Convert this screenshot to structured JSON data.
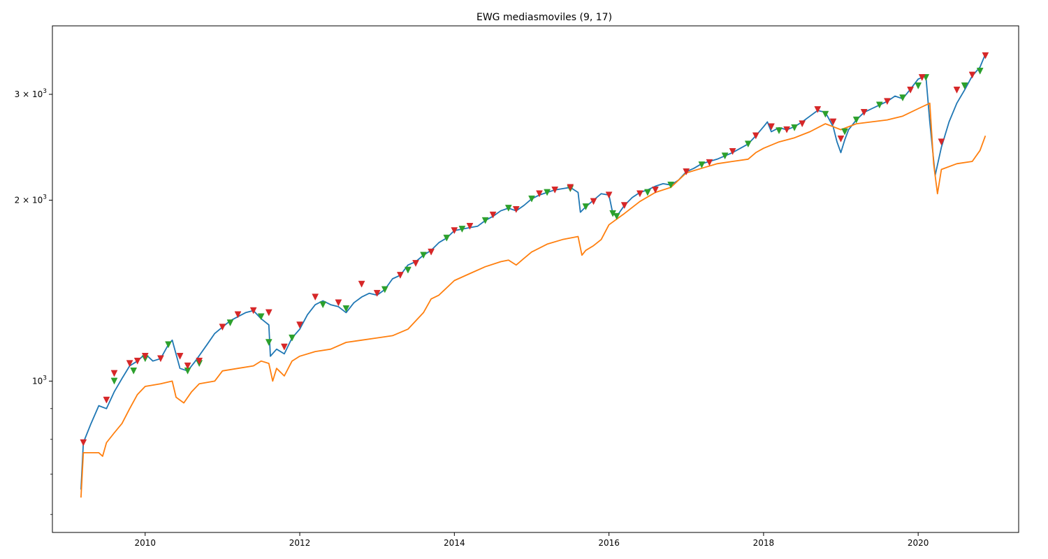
{
  "chart_data": {
    "type": "line",
    "title": "EWG mediasmoviles (9, 17)",
    "xlabel": "",
    "ylabel": "",
    "y_scale": "log",
    "xlim": [
      2008.8,
      2021.3
    ],
    "ylim": [
      560,
      3900
    ],
    "grid": false,
    "legend": "none",
    "x_ticks": [
      2010,
      2012,
      2014,
      2016,
      2018,
      2020
    ],
    "x_tick_labels": [
      "2010",
      "2012",
      "2014",
      "2016",
      "2018",
      "2020"
    ],
    "y_ticks": [
      1000,
      2000,
      3000
    ],
    "y_tick_labels": [
      {
        "base": "10",
        "exp": "3"
      },
      {
        "base": "2 × 10",
        "exp": "3"
      },
      {
        "base": "3 × 10",
        "exp": "3"
      }
    ],
    "series": [
      {
        "color": "#1f77b4",
        "points": [
          [
            2009.17,
            660
          ],
          [
            2009.2,
            790
          ],
          [
            2009.3,
            850
          ],
          [
            2009.4,
            910
          ],
          [
            2009.5,
            900
          ],
          [
            2009.6,
            960
          ],
          [
            2009.7,
            1010
          ],
          [
            2009.8,
            1060
          ],
          [
            2009.9,
            1080
          ],
          [
            2010.0,
            1110
          ],
          [
            2010.1,
            1080
          ],
          [
            2010.2,
            1090
          ],
          [
            2010.3,
            1150
          ],
          [
            2010.35,
            1170
          ],
          [
            2010.45,
            1050
          ],
          [
            2010.55,
            1040
          ],
          [
            2010.65,
            1080
          ],
          [
            2010.8,
            1150
          ],
          [
            2010.9,
            1200
          ],
          [
            2011.0,
            1230
          ],
          [
            2011.1,
            1260
          ],
          [
            2011.2,
            1280
          ],
          [
            2011.3,
            1300
          ],
          [
            2011.4,
            1310
          ],
          [
            2011.5,
            1270
          ],
          [
            2011.6,
            1240
          ],
          [
            2011.62,
            1100
          ],
          [
            2011.7,
            1130
          ],
          [
            2011.8,
            1110
          ],
          [
            2011.9,
            1180
          ],
          [
            2012.0,
            1220
          ],
          [
            2012.1,
            1290
          ],
          [
            2012.2,
            1340
          ],
          [
            2012.3,
            1360
          ],
          [
            2012.4,
            1340
          ],
          [
            2012.5,
            1330
          ],
          [
            2012.6,
            1300
          ],
          [
            2012.7,
            1350
          ],
          [
            2012.8,
            1380
          ],
          [
            2012.9,
            1400
          ],
          [
            2013.0,
            1390
          ],
          [
            2013.1,
            1420
          ],
          [
            2013.2,
            1480
          ],
          [
            2013.3,
            1500
          ],
          [
            2013.4,
            1560
          ],
          [
            2013.5,
            1580
          ],
          [
            2013.6,
            1620
          ],
          [
            2013.7,
            1650
          ],
          [
            2013.8,
            1700
          ],
          [
            2013.9,
            1730
          ],
          [
            2014.0,
            1780
          ],
          [
            2014.1,
            1790
          ],
          [
            2014.2,
            1800
          ],
          [
            2014.3,
            1810
          ],
          [
            2014.4,
            1850
          ],
          [
            2014.5,
            1880
          ],
          [
            2014.6,
            1920
          ],
          [
            2014.7,
            1940
          ],
          [
            2014.8,
            1920
          ],
          [
            2014.9,
            1960
          ],
          [
            2015.0,
            2010
          ],
          [
            2015.1,
            2040
          ],
          [
            2015.2,
            2060
          ],
          [
            2015.3,
            2080
          ],
          [
            2015.4,
            2090
          ],
          [
            2015.5,
            2100
          ],
          [
            2015.6,
            2060
          ],
          [
            2015.63,
            1910
          ],
          [
            2015.7,
            1950
          ],
          [
            2015.8,
            2000
          ],
          [
            2015.9,
            2050
          ],
          [
            2016.0,
            2040
          ],
          [
            2016.05,
            1900
          ],
          [
            2016.1,
            1880
          ],
          [
            2016.2,
            1960
          ],
          [
            2016.3,
            2020
          ],
          [
            2016.4,
            2060
          ],
          [
            2016.5,
            2080
          ],
          [
            2016.6,
            2110
          ],
          [
            2016.7,
            2130
          ],
          [
            2016.8,
            2120
          ],
          [
            2016.9,
            2160
          ],
          [
            2017.0,
            2230
          ],
          [
            2017.1,
            2260
          ],
          [
            2017.2,
            2300
          ],
          [
            2017.3,
            2320
          ],
          [
            2017.4,
            2340
          ],
          [
            2017.5,
            2370
          ],
          [
            2017.6,
            2400
          ],
          [
            2017.7,
            2440
          ],
          [
            2017.8,
            2480
          ],
          [
            2017.9,
            2560
          ],
          [
            2018.0,
            2650
          ],
          [
            2018.05,
            2700
          ],
          [
            2018.1,
            2600
          ],
          [
            2018.2,
            2640
          ],
          [
            2018.3,
            2620
          ],
          [
            2018.4,
            2650
          ],
          [
            2018.5,
            2700
          ],
          [
            2018.6,
            2760
          ],
          [
            2018.7,
            2820
          ],
          [
            2018.8,
            2800
          ],
          [
            2018.9,
            2650
          ],
          [
            2018.95,
            2500
          ],
          [
            2019.0,
            2400
          ],
          [
            2019.05,
            2520
          ],
          [
            2019.1,
            2620
          ],
          [
            2019.2,
            2720
          ],
          [
            2019.3,
            2800
          ],
          [
            2019.4,
            2840
          ],
          [
            2019.5,
            2880
          ],
          [
            2019.6,
            2920
          ],
          [
            2019.7,
            2980
          ],
          [
            2019.8,
            2950
          ],
          [
            2019.9,
            3060
          ],
          [
            2020.0,
            3180
          ],
          [
            2020.1,
            3220
          ],
          [
            2020.15,
            2700
          ],
          [
            2020.22,
            2200
          ],
          [
            2020.3,
            2450
          ],
          [
            2020.4,
            2700
          ],
          [
            2020.5,
            2900
          ],
          [
            2020.6,
            3050
          ],
          [
            2020.7,
            3220
          ],
          [
            2020.8,
            3330
          ],
          [
            2020.87,
            3500
          ]
        ]
      },
      {
        "color": "#ff7f0e",
        "points": [
          [
            2009.17,
            640
          ],
          [
            2009.2,
            760
          ],
          [
            2009.4,
            760
          ],
          [
            2009.45,
            750
          ],
          [
            2009.5,
            790
          ],
          [
            2009.6,
            820
          ],
          [
            2009.7,
            850
          ],
          [
            2009.8,
            900
          ],
          [
            2009.9,
            950
          ],
          [
            2010.0,
            980
          ],
          [
            2010.2,
            990
          ],
          [
            2010.35,
            1000
          ],
          [
            2010.4,
            940
          ],
          [
            2010.5,
            920
          ],
          [
            2010.6,
            960
          ],
          [
            2010.7,
            990
          ],
          [
            2010.9,
            1000
          ],
          [
            2011.0,
            1040
          ],
          [
            2011.2,
            1050
          ],
          [
            2011.4,
            1060
          ],
          [
            2011.5,
            1080
          ],
          [
            2011.6,
            1070
          ],
          [
            2011.65,
            1000
          ],
          [
            2011.7,
            1050
          ],
          [
            2011.8,
            1020
          ],
          [
            2011.9,
            1080
          ],
          [
            2012.0,
            1100
          ],
          [
            2012.2,
            1120
          ],
          [
            2012.4,
            1130
          ],
          [
            2012.6,
            1160
          ],
          [
            2012.8,
            1170
          ],
          [
            2013.0,
            1180
          ],
          [
            2013.2,
            1190
          ],
          [
            2013.4,
            1220
          ],
          [
            2013.6,
            1300
          ],
          [
            2013.7,
            1370
          ],
          [
            2013.8,
            1390
          ],
          [
            2014.0,
            1470
          ],
          [
            2014.2,
            1510
          ],
          [
            2014.4,
            1550
          ],
          [
            2014.6,
            1580
          ],
          [
            2014.7,
            1590
          ],
          [
            2014.8,
            1560
          ],
          [
            2014.9,
            1600
          ],
          [
            2015.0,
            1640
          ],
          [
            2015.2,
            1690
          ],
          [
            2015.4,
            1720
          ],
          [
            2015.6,
            1740
          ],
          [
            2015.65,
            1620
          ],
          [
            2015.7,
            1650
          ],
          [
            2015.8,
            1680
          ],
          [
            2015.9,
            1720
          ],
          [
            2016.0,
            1820
          ],
          [
            2016.2,
            1900
          ],
          [
            2016.4,
            1990
          ],
          [
            2016.6,
            2060
          ],
          [
            2016.8,
            2100
          ],
          [
            2017.0,
            2220
          ],
          [
            2017.2,
            2260
          ],
          [
            2017.4,
            2300
          ],
          [
            2017.6,
            2320
          ],
          [
            2017.8,
            2340
          ],
          [
            2017.9,
            2400
          ],
          [
            2018.0,
            2440
          ],
          [
            2018.2,
            2500
          ],
          [
            2018.4,
            2540
          ],
          [
            2018.6,
            2600
          ],
          [
            2018.8,
            2680
          ],
          [
            2018.9,
            2650
          ],
          [
            2019.0,
            2620
          ],
          [
            2019.2,
            2680
          ],
          [
            2019.4,
            2700
          ],
          [
            2019.6,
            2720
          ],
          [
            2019.8,
            2760
          ],
          [
            2020.0,
            2840
          ],
          [
            2020.15,
            2900
          ],
          [
            2020.2,
            2300
          ],
          [
            2020.25,
            2050
          ],
          [
            2020.3,
            2250
          ],
          [
            2020.5,
            2300
          ],
          [
            2020.7,
            2320
          ],
          [
            2020.8,
            2420
          ],
          [
            2020.87,
            2560
          ]
        ]
      }
    ],
    "markers": {
      "sell": {
        "color": "#d62728",
        "shape": "triangle-down",
        "points": [
          [
            2009.2,
            790
          ],
          [
            2009.5,
            930
          ],
          [
            2009.6,
            1030
          ],
          [
            2009.8,
            1070
          ],
          [
            2009.9,
            1080
          ],
          [
            2010.0,
            1100
          ],
          [
            2010.2,
            1090
          ],
          [
            2010.45,
            1100
          ],
          [
            2010.55,
            1060
          ],
          [
            2010.7,
            1080
          ],
          [
            2011.0,
            1230
          ],
          [
            2011.2,
            1290
          ],
          [
            2011.4,
            1310
          ],
          [
            2011.6,
            1300
          ],
          [
            2011.8,
            1140
          ],
          [
            2012.0,
            1240
          ],
          [
            2012.2,
            1380
          ],
          [
            2012.5,
            1350
          ],
          [
            2012.8,
            1450
          ],
          [
            2013.0,
            1400
          ],
          [
            2013.3,
            1500
          ],
          [
            2013.5,
            1570
          ],
          [
            2013.7,
            1640
          ],
          [
            2014.0,
            1780
          ],
          [
            2014.2,
            1810
          ],
          [
            2014.5,
            1890
          ],
          [
            2014.8,
            1930
          ],
          [
            2015.1,
            2050
          ],
          [
            2015.3,
            2080
          ],
          [
            2015.5,
            2100
          ],
          [
            2015.8,
            1990
          ],
          [
            2016.0,
            2040
          ],
          [
            2016.2,
            1960
          ],
          [
            2016.4,
            2050
          ],
          [
            2016.6,
            2080
          ],
          [
            2017.0,
            2230
          ],
          [
            2017.3,
            2310
          ],
          [
            2017.6,
            2410
          ],
          [
            2017.9,
            2560
          ],
          [
            2018.1,
            2650
          ],
          [
            2018.3,
            2620
          ],
          [
            2018.5,
            2680
          ],
          [
            2018.7,
            2830
          ],
          [
            2018.9,
            2700
          ],
          [
            2019.0,
            2530
          ],
          [
            2019.3,
            2800
          ],
          [
            2019.6,
            2920
          ],
          [
            2019.9,
            3050
          ],
          [
            2020.05,
            3200
          ],
          [
            2020.3,
            2500
          ],
          [
            2020.5,
            3050
          ],
          [
            2020.7,
            3230
          ],
          [
            2020.87,
            3480
          ]
        ]
      },
      "buy": {
        "color": "#2ca02c",
        "shape": "triangle-down",
        "points": [
          [
            2009.6,
            1000
          ],
          [
            2009.85,
            1040
          ],
          [
            2010.0,
            1090
          ],
          [
            2010.3,
            1150
          ],
          [
            2010.55,
            1040
          ],
          [
            2010.7,
            1070
          ],
          [
            2011.1,
            1250
          ],
          [
            2011.5,
            1280
          ],
          [
            2011.6,
            1160
          ],
          [
            2011.9,
            1180
          ],
          [
            2012.3,
            1340
          ],
          [
            2012.6,
            1320
          ],
          [
            2013.1,
            1420
          ],
          [
            2013.4,
            1530
          ],
          [
            2013.6,
            1620
          ],
          [
            2013.9,
            1730
          ],
          [
            2014.1,
            1790
          ],
          [
            2014.4,
            1850
          ],
          [
            2014.7,
            1940
          ],
          [
            2015.0,
            2010
          ],
          [
            2015.2,
            2060
          ],
          [
            2015.5,
            2090
          ],
          [
            2015.7,
            1950
          ],
          [
            2016.05,
            1900
          ],
          [
            2016.1,
            1880
          ],
          [
            2016.5,
            2060
          ],
          [
            2016.8,
            2120
          ],
          [
            2017.2,
            2290
          ],
          [
            2017.5,
            2370
          ],
          [
            2017.8,
            2480
          ],
          [
            2018.2,
            2610
          ],
          [
            2018.4,
            2640
          ],
          [
            2018.8,
            2780
          ],
          [
            2019.05,
            2600
          ],
          [
            2019.2,
            2720
          ],
          [
            2019.5,
            2880
          ],
          [
            2019.8,
            2960
          ],
          [
            2020.0,
            3100
          ],
          [
            2020.1,
            3200
          ],
          [
            2020.6,
            3100
          ],
          [
            2020.8,
            3280
          ]
        ]
      }
    }
  }
}
